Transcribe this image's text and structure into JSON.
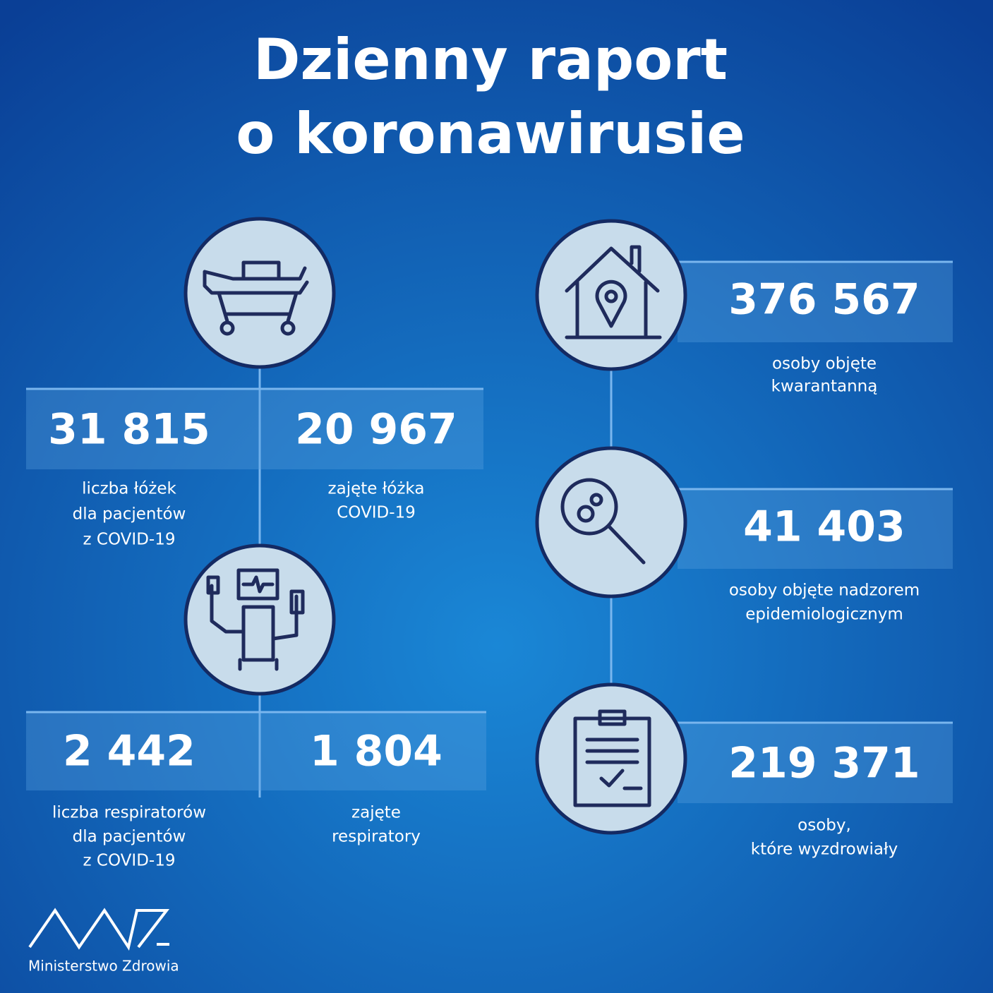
{
  "header": {
    "title_lines": [
      "Dzienny raport",
      "o koronawirusie"
    ]
  },
  "left": [
    {
      "items": [
        {
          "number": "31 815",
          "label_lines": [
            "liczba łóżek",
            "dla pacjentów",
            "z COVID-19"
          ]
        },
        {
          "number": "20 967",
          "label_lines": [
            "zajęte łóżka",
            "COVID-19"
          ]
        }
      ]
    },
    {
      "items": [
        {
          "number": "2 442",
          "label_lines": [
            "liczba respiratorów",
            "dla pacjentów",
            "z COVID-19"
          ]
        },
        {
          "number": "1 804",
          "label_lines": [
            "zajęte",
            "respiratory"
          ]
        }
      ]
    }
  ],
  "right": [
    {
      "number": "376 567",
      "label_lines": [
        "osoby objęte",
        "kwarantanną"
      ]
    },
    {
      "number": "41 403",
      "label_lines": [
        "osoby objęte nadzorem",
        "epidemiologicznym"
      ]
    },
    {
      "number": "219 371",
      "label_lines": [
        "osoby,",
        "które wyzdrowiały"
      ]
    }
  ],
  "footer": {
    "logo_text": "Ministerstwo Zdrowia"
  }
}
